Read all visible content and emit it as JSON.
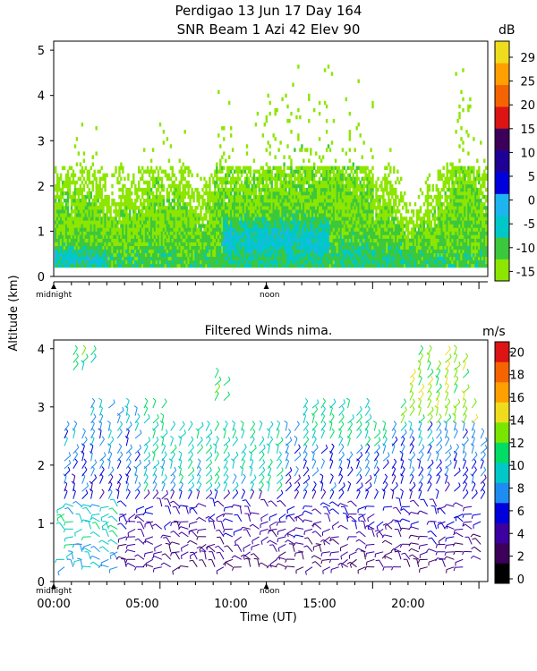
{
  "figure": {
    "title_line1": "Perdigao  13 Jun 17 Day 164",
    "title_line2": "SNR Beam 1 Azi  42 Elev 90",
    "ylabel": "Altitude (km)",
    "xlabel": "Time (UT)",
    "marker_midnight": "midnight",
    "marker_noon": "noon"
  },
  "chart_data": [
    {
      "type": "heatmap",
      "title": "SNR Beam 1 Azi  42 Elev 90",
      "ylabel": "Altitude (km)",
      "ylim": [
        0,
        5.2
      ],
      "xlim_hours": [
        0,
        24.5
      ],
      "y_ticks": [
        "0",
        "1",
        "2",
        "3",
        "4",
        "5"
      ],
      "colorbar": {
        "unit": "dB",
        "ticks": [
          "29",
          "25",
          "20",
          "15",
          "10",
          "5",
          "0",
          "-5",
          "-10",
          "-15"
        ],
        "levels": [
          -15,
          -10,
          -5,
          0,
          5,
          10,
          15,
          20,
          25,
          29
        ],
        "colors": [
          "#8ce600",
          "#3cc83c",
          "#00c8c8",
          "#1eb4f0",
          "#0000dc",
          "#1e0096",
          "#3c005a",
          "#dc1414",
          "#f56400",
          "#ffa000",
          "#f0dc1e"
        ]
      }
    },
    {
      "type": "scatter",
      "title": "Filtered Winds nima.",
      "ylabel": "Altitude (km)",
      "xlabel": "Time (UT)",
      "ylim": [
        0,
        4.15
      ],
      "xlim_hours": [
        0,
        24.5
      ],
      "y_ticks": [
        "0",
        "1",
        "2",
        "3",
        "4"
      ],
      "x_ticks": [
        "00:00",
        "05:00",
        "10:00",
        "15:00",
        "20:00"
      ],
      "colorbar": {
        "unit": "m/s",
        "ticks": [
          "20",
          "18",
          "16",
          "14",
          "12",
          "10",
          "8",
          "6",
          "4",
          "2",
          "0"
        ],
        "colors": [
          "#000000",
          "#3c005a",
          "#3c00a0",
          "#0000dc",
          "#1e8cf0",
          "#00c8c8",
          "#00dc64",
          "#78e600",
          "#f0dc1e",
          "#ffa000",
          "#f56400",
          "#dc1414"
        ]
      }
    }
  ]
}
